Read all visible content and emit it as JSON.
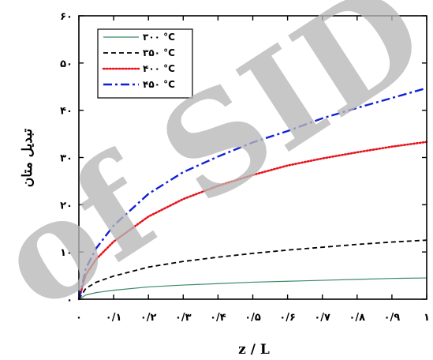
{
  "chart_data": {
    "type": "line",
    "xlabel": "z / L",
    "ylabel": "تبدیل متان",
    "xlim": [
      0,
      1
    ],
    "ylim": [
      0,
      60
    ],
    "x_ticks": [
      0,
      0.1,
      0.2,
      0.3,
      0.4,
      0.5,
      0.6,
      0.7,
      0.8,
      0.9,
      1
    ],
    "y_ticks": [
      0,
      10,
      20,
      30,
      40,
      50,
      60
    ],
    "x_tick_labels": [
      "۰",
      "۰/۱",
      "۰/۲",
      "۰/۳",
      "۰/۴",
      "۰/۵",
      "۰/۶",
      "۰/۷",
      "۰/۸",
      "۰/۹",
      "۱"
    ],
    "y_tick_labels": [
      "۰",
      "۱۰",
      "۲۰",
      "۳۰",
      "۴۰",
      "۵۰",
      "۶۰"
    ],
    "grid": false,
    "legend_position": "top-left",
    "watermark": "of SID",
    "series": [
      {
        "name": "۳۰۰ °C",
        "color": "#3a8a64",
        "dash": "solid",
        "x": [
          0,
          0.02,
          0.05,
          0.1,
          0.2,
          0.3,
          0.4,
          0.5,
          0.6,
          0.7,
          0.8,
          0.9,
          1.0
        ],
        "y": [
          0,
          0.9,
          1.4,
          1.9,
          2.6,
          3.0,
          3.3,
          3.6,
          3.8,
          4.0,
          4.2,
          4.4,
          4.5
        ]
      },
      {
        "name": "۳۵۰ °C",
        "color": "#000000",
        "dash": "dashed",
        "x": [
          0,
          0.02,
          0.05,
          0.1,
          0.2,
          0.3,
          0.4,
          0.5,
          0.6,
          0.7,
          0.8,
          0.9,
          1.0
        ],
        "y": [
          0,
          2.3,
          3.6,
          4.9,
          6.8,
          8.0,
          8.9,
          9.7,
          10.4,
          11.0,
          11.6,
          12.1,
          12.5
        ]
      },
      {
        "name": "۴۰۰ °C",
        "color": "#e8141c",
        "dash": "dotted",
        "x": [
          0,
          0.02,
          0.05,
          0.1,
          0.2,
          0.3,
          0.4,
          0.5,
          0.6,
          0.7,
          0.8,
          0.9,
          1.0
        ],
        "y": [
          0,
          5.2,
          8.5,
          12.2,
          17.5,
          21.2,
          24.0,
          26.3,
          28.3,
          29.8,
          31.1,
          32.3,
          33.3
        ]
      },
      {
        "name": "۴۵۰ °C",
        "color": "#1020d8",
        "dash": "dashdot",
        "x": [
          0,
          0.02,
          0.05,
          0.1,
          0.2,
          0.3,
          0.4,
          0.5,
          0.6,
          0.7,
          0.8,
          0.9,
          1.0
        ],
        "y": [
          0,
          6.5,
          10.8,
          15.6,
          22.3,
          26.9,
          30.2,
          33.2,
          35.6,
          38.3,
          40.5,
          42.6,
          44.7
        ]
      }
    ]
  }
}
